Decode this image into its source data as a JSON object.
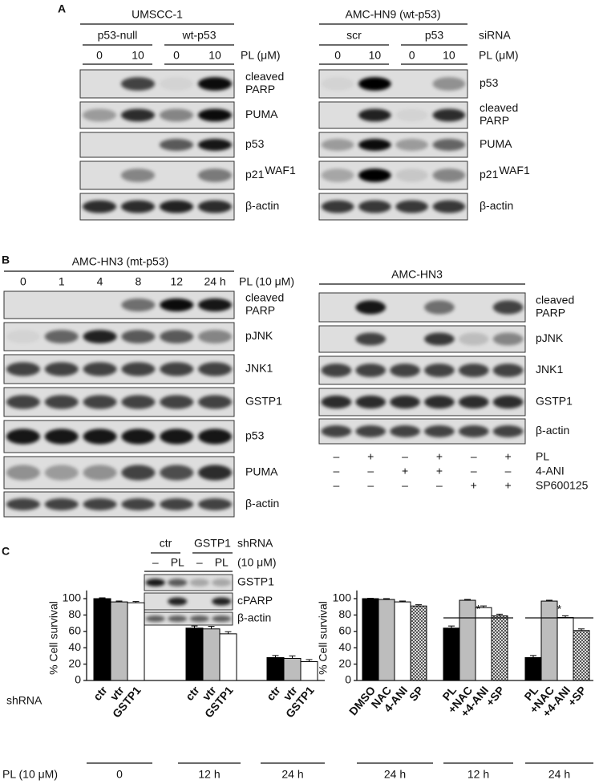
{
  "panel_a": {
    "label": "A",
    "blots": [
      {
        "header": "UMSCC-1",
        "groups": [
          "p53-null",
          "wt-p53"
        ],
        "lanes": [
          "0",
          "10",
          "0",
          "10"
        ],
        "lane_unit": "PL (μM)",
        "bands": [
          {
            "lines": [
              "cleaved",
              "PARP"
            ]
          },
          {
            "lines": [
              "PUMA"
            ]
          },
          {
            "lines": [
              "p53"
            ]
          },
          {
            "lines": [
              "p21"
            ],
            "sup": "WAF1"
          },
          {
            "lines": [
              "β-actin"
            ]
          }
        ]
      },
      {
        "header": "AMC-HN9 (wt-p53)",
        "groups": [
          "scr",
          "p53"
        ],
        "group_unit": "siRNA",
        "lanes": [
          "0",
          "10",
          "0",
          "10"
        ],
        "lane_unit": "PL (μM)",
        "bands": [
          {
            "lines": [
              "p53"
            ]
          },
          {
            "lines": [
              "cleaved",
              "PARP"
            ]
          },
          {
            "lines": [
              "PUMA"
            ]
          },
          {
            "lines": [
              "p21"
            ],
            "sup": "WAF1"
          },
          {
            "lines": [
              "β-actin"
            ]
          }
        ]
      }
    ]
  },
  "panel_b": {
    "label": "B",
    "blots": [
      {
        "header": "AMC-HN3 (mt-p53)",
        "lanes": [
          "0",
          "1",
          "4",
          "8",
          "12",
          "24 h"
        ],
        "lane_unit": "PL (10 μM)",
        "bands": [
          {
            "lines": [
              "cleaved",
              "PARP"
            ]
          },
          {
            "lines": [
              "pJNK"
            ]
          },
          {
            "lines": [
              "JNK1"
            ]
          },
          {
            "lines": [
              "GSTP1"
            ]
          },
          {
            "lines": [
              "p53"
            ]
          },
          {
            "lines": [
              "PUMA"
            ]
          },
          {
            "lines": [
              "β-actin"
            ]
          }
        ]
      },
      {
        "header": "AMC-HN3",
        "bands": [
          {
            "lines": [
              "cleaved",
              "PARP"
            ]
          },
          {
            "lines": [
              "pJNK"
            ]
          },
          {
            "lines": [
              "JNK1"
            ]
          },
          {
            "lines": [
              "GSTP1"
            ]
          },
          {
            "lines": [
              "β-actin"
            ]
          }
        ],
        "treatments": [
          {
            "name": "PL",
            "signs": [
              "–",
              "+",
              "–",
              "+",
              "–",
              "+"
            ]
          },
          {
            "name": "4-ANI",
            "signs": [
              "–",
              "–",
              "+",
              "+",
              "–",
              "–"
            ]
          },
          {
            "name": "SP600125",
            "signs": [
              "–",
              "–",
              "–",
              "–",
              "+",
              "+"
            ]
          }
        ]
      }
    ]
  },
  "panel_c": {
    "label": "C",
    "inset": {
      "groups": [
        "ctr",
        "GSTP1"
      ],
      "group_unit": "shRNA",
      "lanes": [
        "–",
        "PL",
        "–",
        "PL"
      ],
      "lane_unit": "(10 μM)",
      "bands": [
        {
          "lines": [
            "GSTP1"
          ]
        },
        {
          "lines": [
            "cPARP"
          ]
        },
        {
          "lines": [
            "β-actin"
          ]
        }
      ]
    }
  },
  "chart_data": [
    {
      "type": "bar",
      "ylabel": "% Cell survival",
      "ylim": [
        0,
        110
      ],
      "yticks": [
        0,
        20,
        40,
        60,
        80,
        100
      ],
      "row_label": "shRNA",
      "group_row_label": "PL (10 μM)",
      "groups": [
        {
          "label": "0",
          "bars": [
            "ctr",
            "vtr",
            "GSTP1"
          ]
        },
        {
          "label": "12 h",
          "bars": [
            "ctr",
            "vtr",
            "GSTP1"
          ]
        },
        {
          "label": "24 h",
          "bars": [
            "ctr",
            "vtr",
            "GSTP1"
          ]
        }
      ],
      "series": [
        {
          "color": "#000000",
          "values": [
            100,
            64,
            28
          ],
          "errors": [
            1,
            2.5,
            2.5
          ]
        },
        {
          "color": "#bdbdbd",
          "values": [
            96,
            63,
            27
          ],
          "errors": [
            1,
            3,
            3
          ]
        },
        {
          "color": "#ffffff",
          "values": [
            95,
            57,
            23
          ],
          "errors": [
            1.5,
            2.5,
            2.5
          ]
        }
      ]
    },
    {
      "type": "bar",
      "ylabel": "% Cell survival",
      "ylim": [
        0,
        110
      ],
      "yticks": [
        0,
        20,
        40,
        60,
        80,
        100
      ],
      "groups": [
        {
          "label": "24 h",
          "bars": [
            "DMSO",
            "NAC",
            "4-ANI",
            "SP"
          ]
        },
        {
          "label": "12 h",
          "bars": [
            "PL",
            "+NAC",
            "+4-ANI",
            "+SP"
          ],
          "mark": "*"
        },
        {
          "label": "24 h",
          "bars": [
            "PL",
            "+NAC",
            "+4-ANI",
            "+SP"
          ],
          "mark": "*"
        }
      ],
      "series": [
        {
          "color": "#000000",
          "values": [
            100,
            64,
            28
          ],
          "errors": [
            0.5,
            2.5,
            2.5
          ]
        },
        {
          "color": "#bdbdbd",
          "values": [
            99,
            98,
            97
          ],
          "errors": [
            1,
            1,
            1
          ]
        },
        {
          "color": "#ffffff",
          "values": [
            96,
            89,
            77
          ],
          "errors": [
            1,
            2,
            2
          ]
        },
        {
          "color": "#ffffff",
          "pattern": "crosshatch",
          "values": [
            91,
            79,
            61
          ],
          "errors": [
            1.5,
            2,
            2
          ]
        }
      ]
    }
  ]
}
